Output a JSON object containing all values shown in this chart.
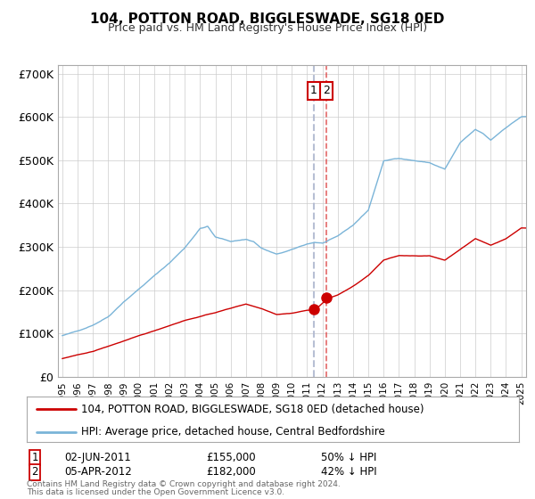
{
  "title": "104, POTTON ROAD, BIGGLESWADE, SG18 0ED",
  "subtitle": "Price paid vs. HM Land Registry's House Price Index (HPI)",
  "legend_line1": "104, POTTON ROAD, BIGGLESWADE, SG18 0ED (detached house)",
  "legend_line2": "HPI: Average price, detached house, Central Bedfordshire",
  "transaction1": {
    "label": "1",
    "date": "02-JUN-2011",
    "price": 155000,
    "pct": "50% ↓ HPI"
  },
  "transaction2": {
    "label": "2",
    "date": "05-APR-2012",
    "price": 182000,
    "pct": "42% ↓ HPI"
  },
  "footnote1": "Contains HM Land Registry data © Crown copyright and database right 2024.",
  "footnote2": "This data is licensed under the Open Government Licence v3.0.",
  "hpi_color": "#7ab4d8",
  "price_color": "#cc0000",
  "vline1_color": "#b0b8d0",
  "vline2_color": "#dd4444",
  "box_color": "#cc0000",
  "ylim": [
    0,
    720000
  ],
  "yticks": [
    0,
    100000,
    200000,
    300000,
    400000,
    500000,
    600000,
    700000
  ],
  "ytick_labels": [
    "£0",
    "£100K",
    "£200K",
    "£300K",
    "£400K",
    "£500K",
    "£600K",
    "£700K"
  ],
  "start_year": 1995,
  "end_year": 2025
}
